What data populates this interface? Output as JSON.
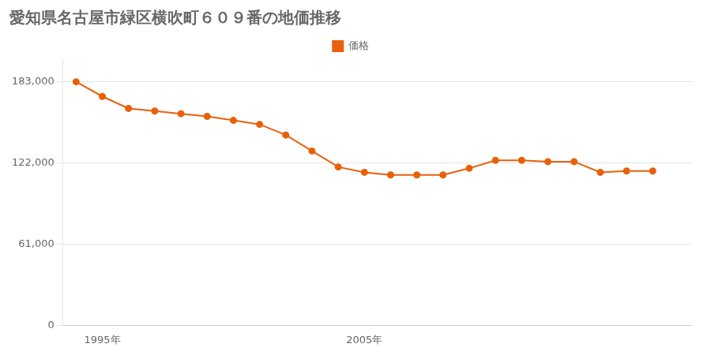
{
  "chart_data": {
    "type": "line",
    "title": "愛知県名古屋市緑区横吹町６０９番の地価推移",
    "x": [
      1994,
      1995,
      1996,
      1997,
      1998,
      1999,
      2000,
      2001,
      2002,
      2003,
      2004,
      2005,
      2006,
      2007,
      2008,
      2009,
      2010,
      2011,
      2012,
      2013,
      2014,
      2015,
      2016
    ],
    "series": [
      {
        "name": "価格",
        "color": "#e8600a",
        "marker": "circle",
        "values": [
          183000,
          172000,
          163000,
          161000,
          159000,
          157000,
          154000,
          151000,
          143000,
          131000,
          119000,
          115000,
          113000,
          113000,
          113000,
          118000,
          124000,
          124000,
          123000,
          123000,
          115000,
          116000,
          116000
        ]
      }
    ],
    "xlim": [
      1993.5,
      2017.5
    ],
    "xticks": [
      {
        "value": 1995,
        "label": "1995年"
      },
      {
        "value": 2005,
        "label": "2005年"
      }
    ],
    "ylim": [
      0,
      200000
    ],
    "yticks": [
      0,
      {
        "value": 61000,
        "label": "61,000"
      },
      {
        "value": 122000,
        "label": "122,000"
      },
      {
        "value": 183000,
        "label": "183,000"
      }
    ],
    "grid": true,
    "legend": "top"
  }
}
